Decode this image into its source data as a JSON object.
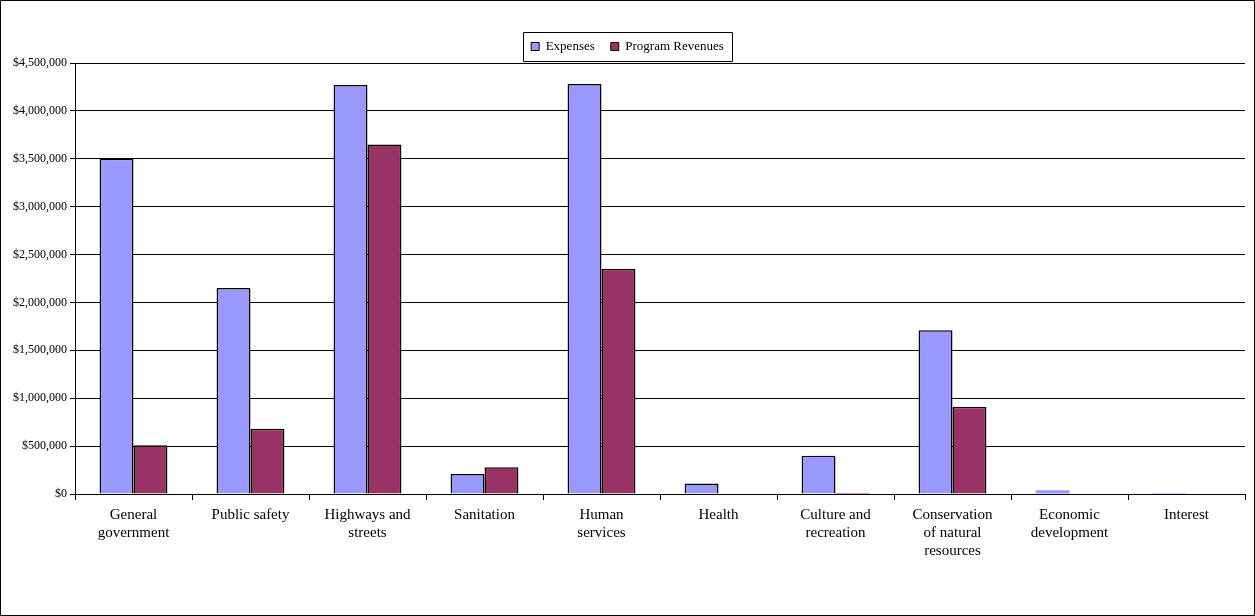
{
  "chart_data": {
    "type": "bar",
    "categories": [
      "General government",
      "Public safety",
      "Highways and streets",
      "Sanitation",
      "Human services",
      "Health",
      "Culture and recreation",
      "Conservation of natural resources",
      "Economic development",
      "Interest"
    ],
    "series": [
      {
        "name": "Expenses",
        "color": "#9999ff",
        "values": [
          3500000,
          2150000,
          4270000,
          210000,
          4280000,
          110000,
          400000,
          1710000,
          40000,
          10000
        ]
      },
      {
        "name": "Program Revenues",
        "color": "#993366",
        "values": [
          510000,
          680000,
          3650000,
          280000,
          2350000,
          0,
          10000,
          910000,
          0,
          0
        ]
      }
    ],
    "ylim": [
      0,
      4500000
    ],
    "yticks": [
      {
        "value": 0,
        "label": "$0"
      },
      {
        "value": 500000,
        "label": "$500,000"
      },
      {
        "value": 1000000,
        "label": "$1,000,000"
      },
      {
        "value": 1500000,
        "label": "$1,500,000"
      },
      {
        "value": 2000000,
        "label": "$2,000,000"
      },
      {
        "value": 2500000,
        "label": "$2,500,000"
      },
      {
        "value": 3000000,
        "label": "$3,000,000"
      },
      {
        "value": 3500000,
        "label": "$3,500,000"
      },
      {
        "value": 4000000,
        "label": "$4,000,000"
      },
      {
        "value": 4500000,
        "label": "$4,500,000"
      }
    ],
    "grid": "y",
    "legend": "top"
  }
}
